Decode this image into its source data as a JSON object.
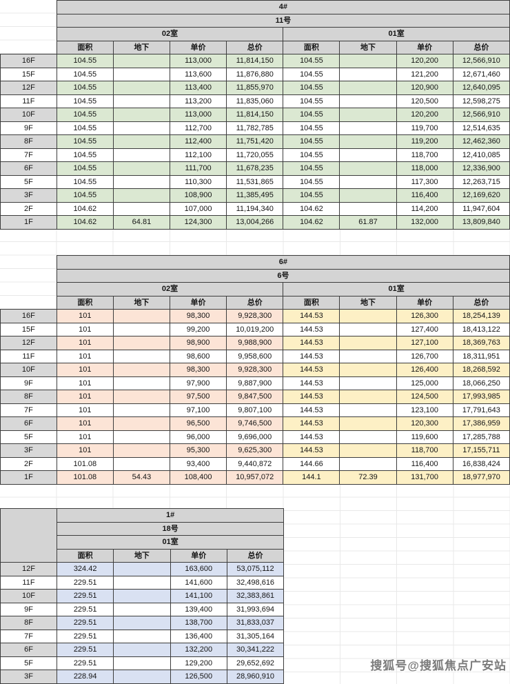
{
  "watermark": "搜狐号@搜狐焦点广安站",
  "shade_colors": {
    "floor_column": "#d8d8d8",
    "header_gray": "#d4d4d4"
  },
  "tables": [
    {
      "building": "4#",
      "number": "11号",
      "rooms": [
        "02室",
        "01室"
      ],
      "headers": [
        "面积",
        "地下",
        "单价",
        "总价"
      ],
      "room_colors": [
        "#dbe8d2",
        "#dbe8d2"
      ],
      "corner_filled": false,
      "rows": [
        {
          "floor": "16F",
          "values": [
            "104.55",
            "",
            "113,000",
            "11,814,150",
            "104.55",
            "",
            "120,200",
            "12,566,910"
          ]
        },
        {
          "floor": "15F",
          "values": [
            "104.55",
            "",
            "113,600",
            "11,876,880",
            "104.55",
            "",
            "121,200",
            "12,671,460"
          ]
        },
        {
          "floor": "12F",
          "values": [
            "104.55",
            "",
            "113,400",
            "11,855,970",
            "104.55",
            "",
            "120,900",
            "12,640,095"
          ]
        },
        {
          "floor": "11F",
          "values": [
            "104.55",
            "",
            "113,200",
            "11,835,060",
            "104.55",
            "",
            "120,500",
            "12,598,275"
          ]
        },
        {
          "floor": "10F",
          "values": [
            "104.55",
            "",
            "113,000",
            "11,814,150",
            "104.55",
            "",
            "120,200",
            "12,566,910"
          ]
        },
        {
          "floor": "9F",
          "values": [
            "104.55",
            "",
            "112,700",
            "11,782,785",
            "104.55",
            "",
            "119,700",
            "12,514,635"
          ]
        },
        {
          "floor": "8F",
          "values": [
            "104.55",
            "",
            "112,400",
            "11,751,420",
            "104.55",
            "",
            "119,200",
            "12,462,360"
          ]
        },
        {
          "floor": "7F",
          "values": [
            "104.55",
            "",
            "112,100",
            "11,720,055",
            "104.55",
            "",
            "118,700",
            "12,410,085"
          ]
        },
        {
          "floor": "6F",
          "values": [
            "104.55",
            "",
            "111,700",
            "11,678,235",
            "104.55",
            "",
            "118,000",
            "12,336,900"
          ]
        },
        {
          "floor": "5F",
          "values": [
            "104.55",
            "",
            "110,300",
            "11,531,865",
            "104.55",
            "",
            "117,300",
            "12,263,715"
          ]
        },
        {
          "floor": "3F",
          "values": [
            "104.55",
            "",
            "108,900",
            "11,385,495",
            "104.55",
            "",
            "116,400",
            "12,169,620"
          ]
        },
        {
          "floor": "2F",
          "values": [
            "104.62",
            "",
            "107,000",
            "11,194,340",
            "104.62",
            "",
            "114,200",
            "11,947,604"
          ]
        },
        {
          "floor": "1F",
          "values": [
            "104.62",
            "64.81",
            "124,300",
            "13,004,266",
            "104.62",
            "61.87",
            "132,000",
            "13,809,840"
          ]
        }
      ]
    },
    {
      "building": "6#",
      "number": "6号",
      "rooms": [
        "02室",
        "01室"
      ],
      "headers": [
        "面积",
        "地下",
        "单价",
        "总价"
      ],
      "room_colors": [
        "#fce4d6",
        "#fdf0c5"
      ],
      "corner_filled": false,
      "rows": [
        {
          "floor": "16F",
          "values": [
            "101",
            "",
            "98,300",
            "9,928,300",
            "144.53",
            "",
            "126,300",
            "18,254,139"
          ]
        },
        {
          "floor": "15F",
          "values": [
            "101",
            "",
            "99,200",
            "10,019,200",
            "144.53",
            "",
            "127,400",
            "18,413,122"
          ]
        },
        {
          "floor": "12F",
          "values": [
            "101",
            "",
            "98,900",
            "9,988,900",
            "144.53",
            "",
            "127,100",
            "18,369,763"
          ]
        },
        {
          "floor": "11F",
          "values": [
            "101",
            "",
            "98,600",
            "9,958,600",
            "144.53",
            "",
            "126,700",
            "18,311,951"
          ]
        },
        {
          "floor": "10F",
          "values": [
            "101",
            "",
            "98,300",
            "9,928,300",
            "144.53",
            "",
            "126,400",
            "18,268,592"
          ]
        },
        {
          "floor": "9F",
          "values": [
            "101",
            "",
            "97,900",
            "9,887,900",
            "144.53",
            "",
            "125,000",
            "18,066,250"
          ]
        },
        {
          "floor": "8F",
          "values": [
            "101",
            "",
            "97,500",
            "9,847,500",
            "144.53",
            "",
            "124,500",
            "17,993,985"
          ]
        },
        {
          "floor": "7F",
          "values": [
            "101",
            "",
            "97,100",
            "9,807,100",
            "144.53",
            "",
            "123,100",
            "17,791,643"
          ]
        },
        {
          "floor": "6F",
          "values": [
            "101",
            "",
            "96,500",
            "9,746,500",
            "144.53",
            "",
            "120,300",
            "17,386,959"
          ]
        },
        {
          "floor": "5F",
          "values": [
            "101",
            "",
            "96,000",
            "9,696,000",
            "144.53",
            "",
            "119,600",
            "17,285,788"
          ]
        },
        {
          "floor": "3F",
          "values": [
            "101",
            "",
            "95,300",
            "9,625,300",
            "144.53",
            "",
            "118,700",
            "17,155,711"
          ]
        },
        {
          "floor": "2F",
          "values": [
            "101.08",
            "",
            "93,400",
            "9,440,872",
            "144.66",
            "",
            "116,400",
            "16,838,424"
          ]
        },
        {
          "floor": "1F",
          "values": [
            "101.08",
            "54.43",
            "108,400",
            "10,957,072",
            "144.1",
            "72.39",
            "131,700",
            "18,977,970"
          ]
        }
      ]
    },
    {
      "building": "1#",
      "number": "18号",
      "rooms": [
        "01室"
      ],
      "headers": [
        "面积",
        "地下",
        "单价",
        "总价"
      ],
      "room_colors": [
        "#d9e1f2"
      ],
      "corner_filled": true,
      "rows": [
        {
          "floor": "12F",
          "values": [
            "324.42",
            "",
            "163,600",
            "53,075,112"
          ]
        },
        {
          "floor": "11F",
          "values": [
            "229.51",
            "",
            "141,600",
            "32,498,616"
          ]
        },
        {
          "floor": "10F",
          "values": [
            "229.51",
            "",
            "141,100",
            "32,383,861"
          ]
        },
        {
          "floor": "9F",
          "values": [
            "229.51",
            "",
            "139,400",
            "31,993,694"
          ]
        },
        {
          "floor": "8F",
          "values": [
            "229.51",
            "",
            "138,700",
            "31,833,037"
          ]
        },
        {
          "floor": "7F",
          "values": [
            "229.51",
            "",
            "136,400",
            "31,305,164"
          ]
        },
        {
          "floor": "6F",
          "values": [
            "229.51",
            "",
            "132,200",
            "30,341,222"
          ]
        },
        {
          "floor": "5F",
          "values": [
            "229.51",
            "",
            "129,200",
            "29,652,692"
          ]
        },
        {
          "floor": "3F",
          "values": [
            "228.94",
            "",
            "126,500",
            "28,960,910"
          ]
        }
      ]
    }
  ]
}
